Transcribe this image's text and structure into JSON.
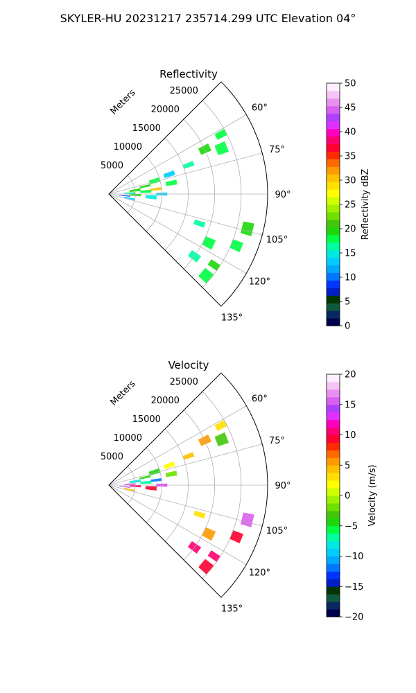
{
  "suptitle": "SKYLER-HU  20231217  235714.299 UTC Elevation 04°",
  "colors": {
    "reflectivity_scale": [
      "#00004f",
      "#082860",
      "#0f5a3e",
      "#043500",
      "#001fc8",
      "#0035ff",
      "#0077ff",
      "#00a8ff",
      "#00ccff",
      "#00e8e0",
      "#00ffa0",
      "#00ff40",
      "#1cd80b",
      "#44c60a",
      "#6fe000",
      "#a0f000",
      "#d0ff00",
      "#ffff00",
      "#ffe000",
      "#ffc000",
      "#ff9a00",
      "#ff6a00",
      "#ff2a00",
      "#ff0030",
      "#ff0070",
      "#ff00c0",
      "#e030ff",
      "#b040ff",
      "#d860f0",
      "#e890f0",
      "#f4c4f4",
      "#ffeeff"
    ],
    "velocity_scale": [
      "#00004f",
      "#082860",
      "#0f5a3e",
      "#043500",
      "#001fc8",
      "#0035ff",
      "#0077ff",
      "#00a8ff",
      "#00ccff",
      "#00e8e0",
      "#00ffa0",
      "#00ff40",
      "#1cd80b",
      "#44c60a",
      "#6fe000",
      "#a0f000",
      "#d0ff00",
      "#ffff00",
      "#ffe000",
      "#ffc000",
      "#ff9a00",
      "#ff6a00",
      "#ff2a00",
      "#ff0030",
      "#ff0070",
      "#ff00c0",
      "#e030ff",
      "#b040ff",
      "#d860f0",
      "#e890f0",
      "#f4c4f4",
      "#ffeeff"
    ]
  },
  "chart_data": [
    {
      "type": "heatmap",
      "title": "Reflectivity",
      "radial_label": "Meters",
      "radial_ticks": [
        5000,
        10000,
        15000,
        20000,
        25000
      ],
      "radial_tick_labels": [
        "5000",
        "10000",
        "15000",
        "20000",
        "25000"
      ],
      "angle_ticks": [
        60,
        75,
        90,
        105,
        120,
        135
      ],
      "angle_tick_labels": [
        "60°",
        "75°",
        "90°",
        "105°",
        "120°",
        "135°"
      ],
      "angle_range": [
        45,
        135
      ],
      "range_max": 30000,
      "colorbar": {
        "label": "Reflectivity dBZ",
        "range": [
          0,
          50
        ],
        "ticks": [
          0,
          5,
          10,
          15,
          20,
          25,
          30,
          35,
          40,
          45,
          50
        ],
        "tick_labels": [
          "0",
          "5",
          "10",
          "15",
          "20",
          "25",
          "30",
          "35",
          "40",
          "45",
          "50"
        ]
      },
      "echoes": [
        {
          "az": 62,
          "r": 24000,
          "value": 18
        },
        {
          "az": 65,
          "r": 20000,
          "value": 19
        },
        {
          "az": 68,
          "r": 23000,
          "value": 18
        },
        {
          "az": 70,
          "r": 16000,
          "value": 17
        },
        {
          "az": 72,
          "r": 12000,
          "value": 13
        },
        {
          "az": 74,
          "r": 9000,
          "value": 18
        },
        {
          "az": 78,
          "r": 7000,
          "value": 19
        },
        {
          "az": 80,
          "r": 12000,
          "value": 18
        },
        {
          "az": 82,
          "r": 5000,
          "value": 19
        },
        {
          "az": 84,
          "r": 9000,
          "value": 30
        },
        {
          "az": 86,
          "r": 7000,
          "value": 18
        },
        {
          "az": 88,
          "r": 4000,
          "value": 17
        },
        {
          "az": 90,
          "r": 10000,
          "value": 14
        },
        {
          "az": 92,
          "r": 5000,
          "value": 20
        },
        {
          "az": 94,
          "r": 8000,
          "value": 15
        },
        {
          "az": 96,
          "r": 3000,
          "value": 8
        },
        {
          "az": 102,
          "r": 4000,
          "value": 13
        },
        {
          "az": 104,
          "r": 27000,
          "value": 19
        },
        {
          "az": 108,
          "r": 18000,
          "value": 17
        },
        {
          "az": 112,
          "r": 26000,
          "value": 18
        },
        {
          "az": 116,
          "r": 21000,
          "value": 18
        },
        {
          "az": 124,
          "r": 24000,
          "value": 19
        },
        {
          "az": 126,
          "r": 20000,
          "value": 17
        },
        {
          "az": 130,
          "r": 24000,
          "value": 18
        }
      ]
    },
    {
      "type": "heatmap",
      "title": "Velocity",
      "radial_label": "Meters",
      "radial_ticks": [
        5000,
        10000,
        15000,
        20000,
        25000
      ],
      "radial_tick_labels": [
        "5000",
        "10000",
        "15000",
        "20000",
        "25000"
      ],
      "angle_ticks": [
        60,
        75,
        90,
        105,
        120,
        135
      ],
      "angle_tick_labels": [
        "60°",
        "75°",
        "90°",
        "105°",
        "120°",
        "135°"
      ],
      "angle_range": [
        45,
        135
      ],
      "range_max": 30000,
      "colorbar": {
        "label": "Velocity (m/s)",
        "range": [
          -20,
          20
        ],
        "ticks": [
          -20,
          -15,
          -10,
          -5,
          0,
          5,
          10,
          15,
          20
        ],
        "tick_labels": [
          "−20",
          "−15",
          "−10",
          "−5",
          "0",
          "5",
          "10",
          "15",
          "20"
        ]
      },
      "echoes": [
        {
          "az": 62,
          "r": 24000,
          "value": 3
        },
        {
          "az": 65,
          "r": 20000,
          "value": 6
        },
        {
          "az": 68,
          "r": 23000,
          "value": -3
        },
        {
          "az": 70,
          "r": 16000,
          "value": 4
        },
        {
          "az": 72,
          "r": 12000,
          "value": 2
        },
        {
          "az": 74,
          "r": 9000,
          "value": -5
        },
        {
          "az": 78,
          "r": 7000,
          "value": -4
        },
        {
          "az": 80,
          "r": 12000,
          "value": -2
        },
        {
          "az": 82,
          "r": 5000,
          "value": -8
        },
        {
          "az": 84,
          "r": 9000,
          "value": -12
        },
        {
          "az": 86,
          "r": 7000,
          "value": -7
        },
        {
          "az": 88,
          "r": 4000,
          "value": 15
        },
        {
          "az": 90,
          "r": 10000,
          "value": 13
        },
        {
          "az": 92,
          "r": 5000,
          "value": 10
        },
        {
          "az": 94,
          "r": 8000,
          "value": 9
        },
        {
          "az": 96,
          "r": 3000,
          "value": 14
        },
        {
          "az": 102,
          "r": 4000,
          "value": 4
        },
        {
          "az": 104,
          "r": 27000,
          "value": 16
        },
        {
          "az": 108,
          "r": 18000,
          "value": 3
        },
        {
          "az": 112,
          "r": 26000,
          "value": 9
        },
        {
          "az": 116,
          "r": 21000,
          "value": 5
        },
        {
          "az": 124,
          "r": 24000,
          "value": 10
        },
        {
          "az": 126,
          "r": 20000,
          "value": 11
        },
        {
          "az": 130,
          "r": 24000,
          "value": 9
        }
      ]
    }
  ]
}
